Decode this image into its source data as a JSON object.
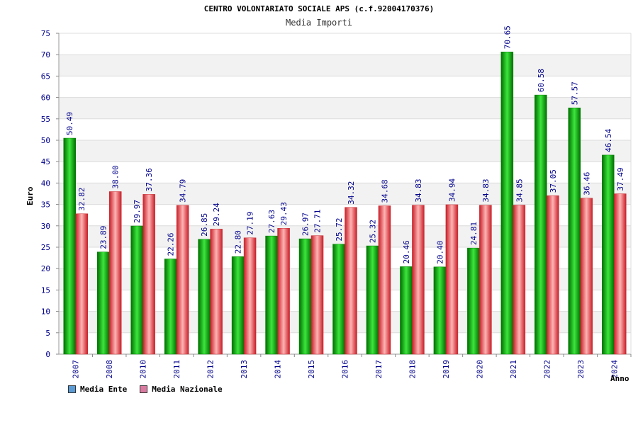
{
  "chart_data": {
    "type": "bar",
    "title": "CENTRO VOLONTARIATO SOCIALE APS (c.f.92004170376)",
    "subtitle": "Media Importi",
    "ylabel": "Euro",
    "xlabel": "Anno",
    "ylim": [
      0,
      75
    ],
    "yticks": [
      0,
      5,
      10,
      15,
      20,
      25,
      30,
      35,
      40,
      45,
      50,
      55,
      60,
      65,
      70,
      75
    ],
    "grid": true,
    "legend_position": "bottom-left",
    "categories": [
      "2007",
      "2008",
      "2010",
      "2011",
      "2012",
      "2013",
      "2014",
      "2015",
      "2016",
      "2017",
      "2018",
      "2019",
      "2020",
      "2021",
      "2022",
      "2023",
      "2024"
    ],
    "series": [
      {
        "name": "Media Ente",
        "color": "#00b400",
        "legend_color": "#5b9bd5",
        "values": [
          50.49,
          23.89,
          29.97,
          22.26,
          26.85,
          22.8,
          27.63,
          26.97,
          25.72,
          25.32,
          20.46,
          20.4,
          24.81,
          70.65,
          60.58,
          57.57,
          46.54
        ],
        "labels": [
          "50.49",
          "23.89",
          "29.97",
          "22.26",
          "26.85",
          "22.80",
          "27.63",
          "26.97",
          "25.72",
          "25.32",
          "20.46",
          "20.40",
          "24.81",
          "70.65",
          "60.58",
          "57.57",
          "46.54"
        ]
      },
      {
        "name": "Media Nazionale",
        "color": "#e8323c",
        "legend_color": "#d97ba0",
        "values": [
          32.82,
          38.0,
          37.36,
          34.79,
          29.24,
          27.19,
          29.43,
          27.71,
          34.32,
          34.68,
          34.83,
          34.94,
          34.83,
          34.85,
          37.05,
          36.46,
          37.49
        ],
        "labels": [
          "32.82",
          "38.00",
          "37.36",
          "34.79",
          "29.24",
          "27.19",
          "29.43",
          "27.71",
          "34.32",
          "34.68",
          "34.83",
          "34.94",
          "34.83",
          "34.85",
          "37.05",
          "36.46",
          "37.49"
        ]
      }
    ]
  }
}
